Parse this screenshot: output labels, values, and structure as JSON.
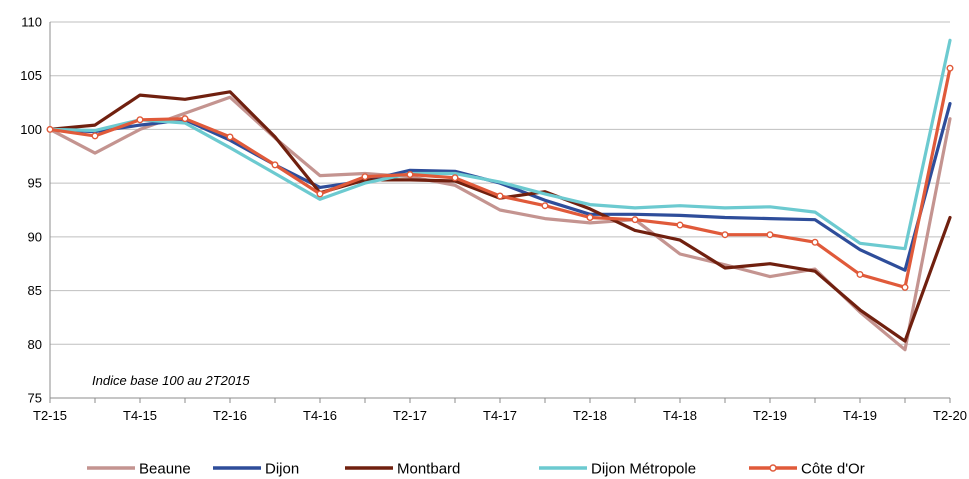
{
  "chart_data": {
    "type": "line",
    "title": "",
    "xlabel": "",
    "ylabel": "",
    "x": [
      "T2-15",
      "T3-15",
      "T4-15",
      "T1-16",
      "T2-16",
      "T3-16",
      "T4-16",
      "T1-17",
      "T2-17",
      "T3-17",
      "T4-17",
      "T1-18",
      "T2-18",
      "T3-18",
      "T4-18",
      "T1-19",
      "T2-19",
      "T3-19",
      "T4-19",
      "T1-20",
      "T2-20"
    ],
    "xticks": [
      "T2-15",
      "T4-15",
      "T2-16",
      "T4-16",
      "T2-17",
      "T4-17",
      "T2-18",
      "T4-18",
      "T2-19",
      "T4-19",
      "T2-20"
    ],
    "ylim": [
      75,
      110
    ],
    "yticks": [
      75,
      80,
      85,
      90,
      95,
      100,
      105,
      110
    ],
    "grid": "horizontal",
    "legend": "bottom",
    "annotation": "Indice base 100 au 2T2015",
    "series": [
      {
        "name": "Beaune",
        "color": "#c49490",
        "markers": false,
        "values": [
          100,
          97.8,
          100,
          101.5,
          103,
          99.2,
          95.7,
          95.9,
          95.6,
          94.8,
          92.5,
          91.7,
          91.3,
          91.6,
          88.4,
          87.4,
          86.3,
          87,
          83,
          79.5,
          101
        ]
      },
      {
        "name": "Dijon",
        "color": "#2e4d9a",
        "markers": false,
        "values": [
          100,
          99.8,
          100.4,
          100.9,
          99,
          96.7,
          94.6,
          95.2,
          96.2,
          96.1,
          95,
          93.4,
          92.1,
          92.1,
          92,
          91.8,
          91.7,
          91.6,
          88.8,
          86.9,
          102.4
        ]
      },
      {
        "name": "Montbard",
        "color": "#70200f",
        "markers": false,
        "values": [
          100,
          100.4,
          103.2,
          102.8,
          103.5,
          99.3,
          94.1,
          95.3,
          95.3,
          95.2,
          93.6,
          94.2,
          92.6,
          90.6,
          89.7,
          87.1,
          87.5,
          86.8,
          83.2,
          80.3,
          91.8
        ]
      },
      {
        "name": "Dijon Métropole",
        "color": "#6ccad0",
        "markers": false,
        "values": [
          100,
          99.9,
          100.9,
          100.6,
          98.3,
          95.9,
          93.5,
          95,
          95.9,
          95.9,
          95.1,
          94,
          93,
          92.7,
          92.9,
          92.7,
          92.8,
          92.3,
          89.4,
          88.9,
          108.3
        ]
      },
      {
        "name": "Côte d'Or",
        "color": "#e05a3a",
        "markers": true,
        "values": [
          100,
          99.4,
          100.9,
          101,
          99.3,
          96.7,
          94,
          95.6,
          95.8,
          95.5,
          93.8,
          92.9,
          91.8,
          91.6,
          91.1,
          90.2,
          90.2,
          89.5,
          86.5,
          85.3,
          105.7
        ]
      }
    ]
  }
}
